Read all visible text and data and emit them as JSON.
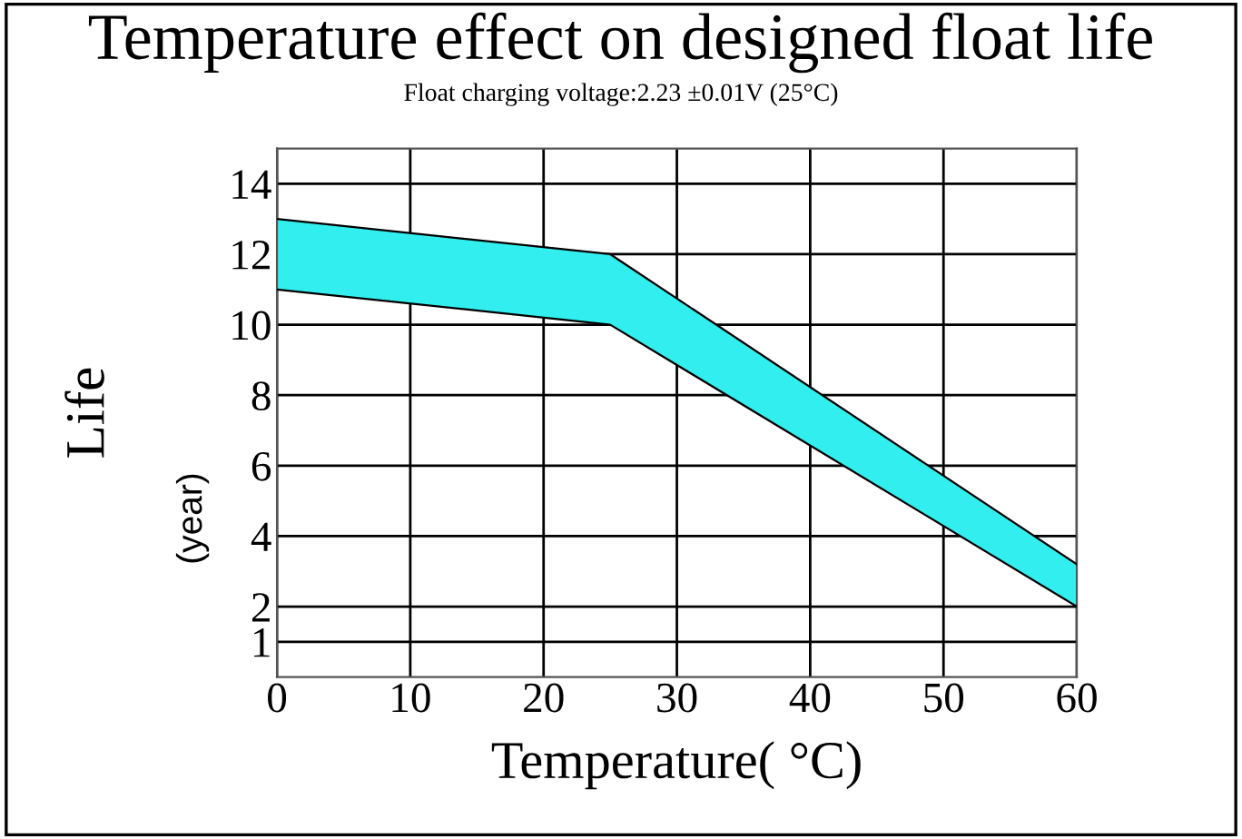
{
  "chart_data": {
    "type": "area",
    "title": "Temperature effect on designed float life",
    "subtitle": "Float charging voltage:2.23 ±0.01V (25°C)",
    "xlabel": "Temperature( °C)",
    "ylabel": "Life",
    "annotations": [
      "(year)"
    ],
    "x": [
      0,
      25,
      60
    ],
    "series": [
      {
        "type": "area",
        "color": "#ffffff",
        "values": [
          11,
          10,
          2
        ]
      },
      {
        "color": "#33eeee",
        "values": [
          2,
          2,
          1.2
        ]
      }
    ],
    "stacked": true,
    "xlim": [
      0,
      60
    ],
    "xticks": [
      0,
      10,
      20,
      30,
      40,
      50,
      60
    ],
    "ylim": [
      0,
      15
    ],
    "yticks": [
      1,
      2,
      4,
      6,
      8,
      10,
      12,
      14
    ],
    "grid": true,
    "legend": false
  }
}
